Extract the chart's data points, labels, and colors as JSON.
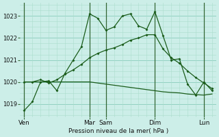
{
  "bg_color": "#cceee8",
  "grid_color_minor": "#aaddcc",
  "grid_color_major": "#88ccbb",
  "line_color": "#1a5c1a",
  "sep_color": "#336633",
  "title": "Pression niveau de la mer( hPa )",
  "ylim": [
    1018.4,
    1023.6
  ],
  "yticks": [
    1019,
    1020,
    1021,
    1022,
    1023
  ],
  "x_day_labels": [
    "Ven",
    "Mar",
    "Sam",
    "Dim",
    "Lun"
  ],
  "x_day_positions": [
    0,
    8,
    10,
    16,
    22
  ],
  "n_points": 24,
  "series1": [
    1018.7,
    1019.1,
    1020.0,
    1020.05,
    1019.6,
    1020.4,
    1021.0,
    1021.6,
    1023.1,
    1022.9,
    1022.35,
    1022.5,
    1023.0,
    1023.1,
    1022.55,
    1022.4,
    1023.2,
    1022.1,
    1021.0,
    1021.05,
    1019.9,
    1019.4,
    1020.0,
    1019.6
  ],
  "series2": [
    1020.0,
    1020.0,
    1020.1,
    1019.95,
    1020.1,
    1020.35,
    1020.55,
    1020.8,
    1021.1,
    1021.3,
    1021.45,
    1021.55,
    1021.7,
    1021.9,
    1022.0,
    1022.15,
    1022.15,
    1021.5,
    1021.1,
    1020.85,
    1020.5,
    1020.2,
    1019.95,
    1019.7
  ],
  "series3": [
    1020.0,
    1020.0,
    1020.0,
    1020.0,
    1020.0,
    1020.0,
    1020.0,
    1020.0,
    1020.0,
    1019.95,
    1019.9,
    1019.85,
    1019.8,
    1019.75,
    1019.7,
    1019.65,
    1019.6,
    1019.55,
    1019.52,
    1019.5,
    1019.45,
    1019.42,
    1019.4,
    1019.45
  ],
  "figsize": [
    3.2,
    2.0
  ],
  "dpi": 100,
  "ylabel_fontsize": 6.0,
  "xlabel_fontsize": 6.5,
  "title_fontsize": 6.5
}
